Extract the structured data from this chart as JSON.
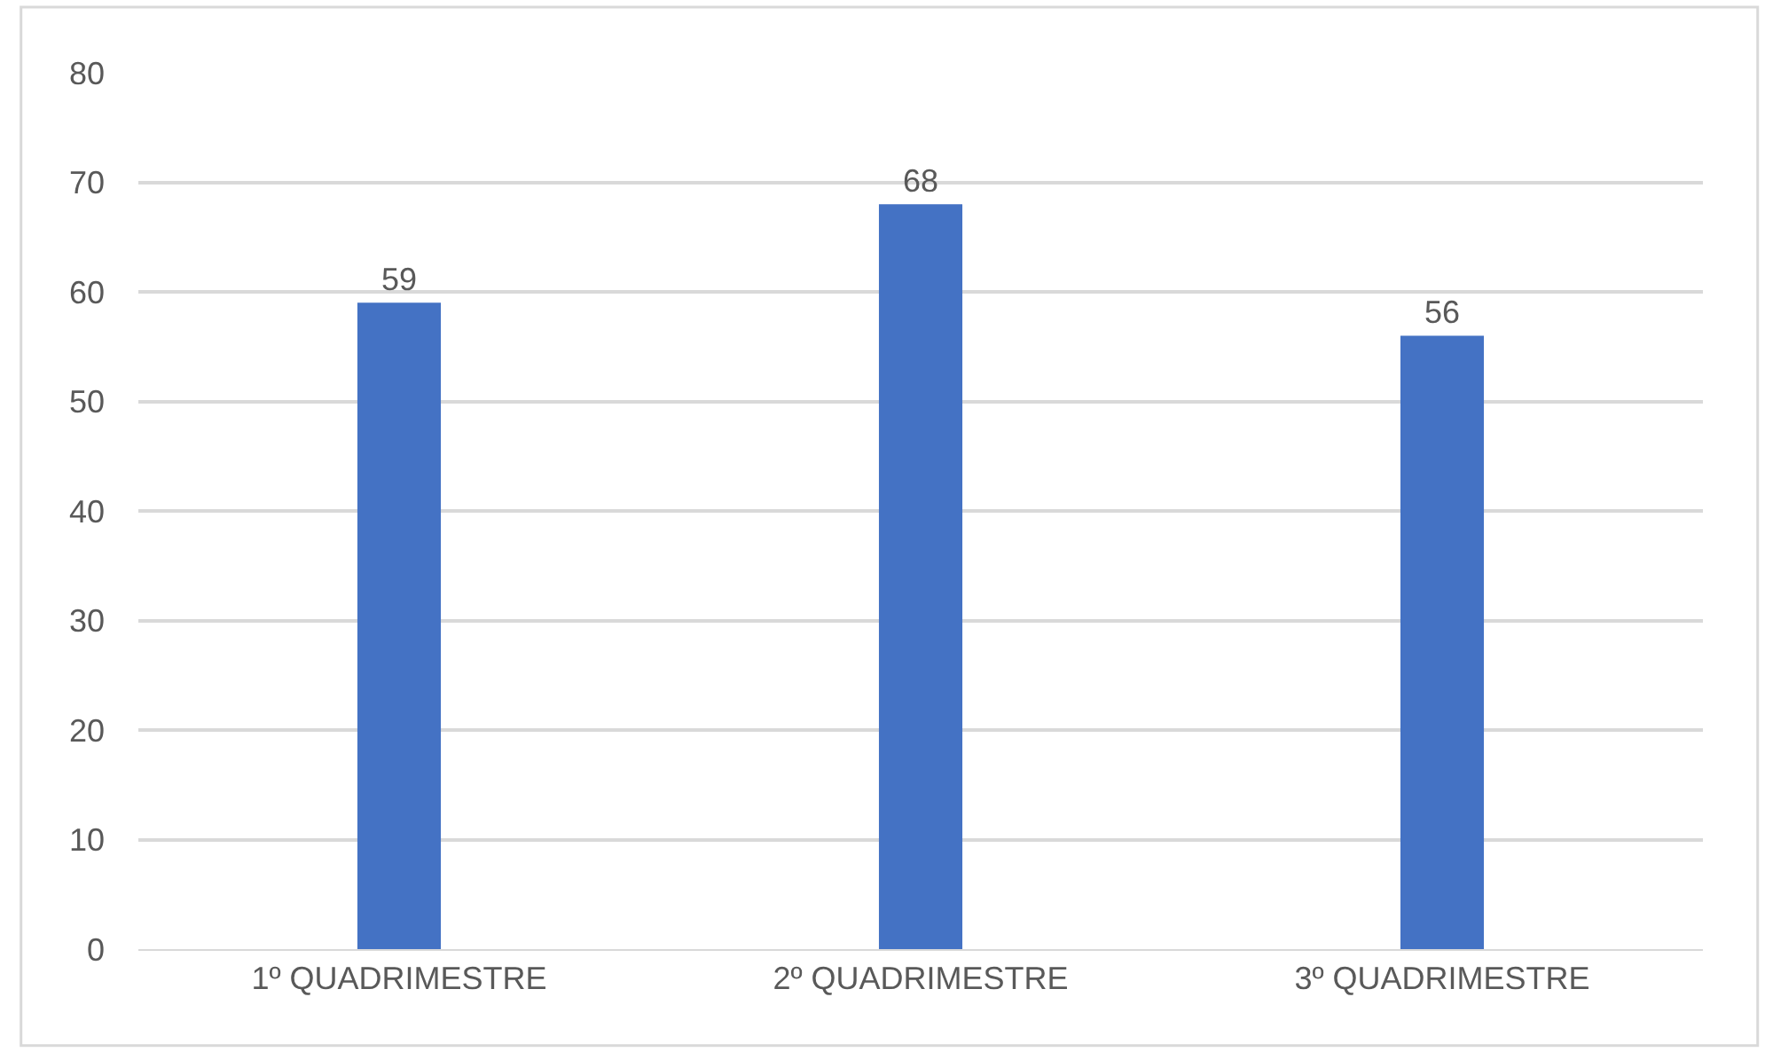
{
  "chart_data": {
    "type": "bar",
    "categories": [
      "1º QUADRIMESTRE",
      "2º QUADRIMESTRE",
      "3º QUADRIMESTRE"
    ],
    "values": [
      59,
      68,
      56
    ],
    "color": "#4472c4",
    "ylim": [
      0,
      80
    ],
    "yticks": [
      0,
      10,
      20,
      30,
      40,
      50,
      60,
      70,
      80
    ],
    "grid": "y",
    "data_labels": true
  }
}
